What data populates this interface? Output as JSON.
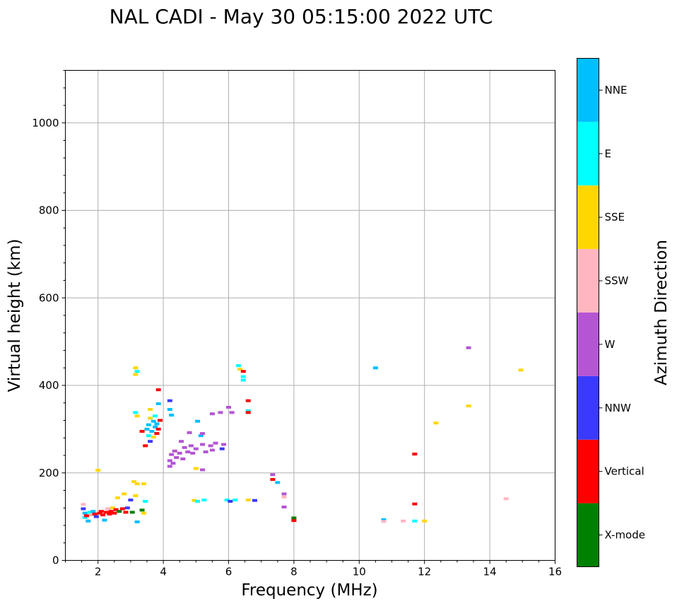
{
  "chart_data": {
    "type": "scatter",
    "title": "NAL CADI - May 30 05:15:00 2022 UTC",
    "xlabel": "Frequency (MHz)",
    "ylabel": "Virtual height (km)",
    "xlim": [
      1,
      16
    ],
    "ylim": [
      0,
      1120
    ],
    "xticks": [
      2,
      4,
      6,
      8,
      10,
      12,
      14,
      16
    ],
    "xtick_labels": [
      "2",
      "4",
      "6",
      "8",
      "10",
      "12",
      "14",
      "16"
    ],
    "yticks": [
      0,
      200,
      400,
      600,
      800,
      1000
    ],
    "ytick_labels": [
      "0",
      "200",
      "400",
      "600",
      "800",
      "1000"
    ],
    "grid": true,
    "colorbar": {
      "label": "Azimuth Direction",
      "categories": [
        {
          "name": "X-mode",
          "color": "#008000"
        },
        {
          "name": "Vertical",
          "color": "#ff0000"
        },
        {
          "name": "NNW",
          "color": "#3a3aff"
        },
        {
          "name": "W",
          "color": "#b455d4"
        },
        {
          "name": "SSW",
          "color": "#ffb6c1"
        },
        {
          "name": "SSE",
          "color": "#ffd700"
        },
        {
          "name": "E",
          "color": "#00ffff"
        },
        {
          "name": "NNE",
          "color": "#00bfff"
        }
      ]
    },
    "points": [
      {
        "f": 1.55,
        "h": 128,
        "dir": "SSW"
      },
      {
        "f": 1.55,
        "h": 118,
        "dir": "NNW"
      },
      {
        "f": 1.6,
        "h": 108,
        "dir": "NNE"
      },
      {
        "f": 1.6,
        "h": 98,
        "dir": "E"
      },
      {
        "f": 1.65,
        "h": 102,
        "dir": "Vertical"
      },
      {
        "f": 1.7,
        "h": 90,
        "dir": "NNE"
      },
      {
        "f": 1.75,
        "h": 110,
        "dir": "E"
      },
      {
        "f": 1.8,
        "h": 104,
        "dir": "SSW"
      },
      {
        "f": 1.85,
        "h": 112,
        "dir": "NNE"
      },
      {
        "f": 1.9,
        "h": 106,
        "dir": "Vertical"
      },
      {
        "f": 1.95,
        "h": 100,
        "dir": "NNW"
      },
      {
        "f": 2.0,
        "h": 206,
        "dir": "SSE"
      },
      {
        "f": 2.05,
        "h": 108,
        "dir": "Vertical"
      },
      {
        "f": 2.1,
        "h": 112,
        "dir": "Vertical"
      },
      {
        "f": 2.15,
        "h": 104,
        "dir": "Vertical"
      },
      {
        "f": 2.2,
        "h": 92,
        "dir": "NNE"
      },
      {
        "f": 2.25,
        "h": 110,
        "dir": "Vertical"
      },
      {
        "f": 2.3,
        "h": 118,
        "dir": "SSW"
      },
      {
        "f": 2.35,
        "h": 106,
        "dir": "Vertical"
      },
      {
        "f": 2.4,
        "h": 112,
        "dir": "Vertical"
      },
      {
        "f": 2.45,
        "h": 120,
        "dir": "SSE"
      },
      {
        "f": 2.5,
        "h": 108,
        "dir": "Vertical"
      },
      {
        "f": 2.55,
        "h": 116,
        "dir": "Vertical"
      },
      {
        "f": 2.6,
        "h": 143,
        "dir": "SSE"
      },
      {
        "f": 2.65,
        "h": 112,
        "dir": "X-mode"
      },
      {
        "f": 2.75,
        "h": 118,
        "dir": "Vertical"
      },
      {
        "f": 2.8,
        "h": 152,
        "dir": "SSE"
      },
      {
        "f": 2.85,
        "h": 110,
        "dir": "Vertical"
      },
      {
        "f": 2.9,
        "h": 120,
        "dir": "NNW"
      },
      {
        "f": 3.0,
        "h": 138,
        "dir": "NNW"
      },
      {
        "f": 3.05,
        "h": 110,
        "dir": "X-mode"
      },
      {
        "f": 3.1,
        "h": 180,
        "dir": "SSE"
      },
      {
        "f": 3.15,
        "h": 148,
        "dir": "SSE"
      },
      {
        "f": 3.2,
        "h": 88,
        "dir": "NNE"
      },
      {
        "f": 3.2,
        "h": 175,
        "dir": "SSE"
      },
      {
        "f": 3.15,
        "h": 425,
        "dir": "SSE"
      },
      {
        "f": 3.15,
        "h": 440,
        "dir": "SSE"
      },
      {
        "f": 3.2,
        "h": 432,
        "dir": "E"
      },
      {
        "f": 3.15,
        "h": 338,
        "dir": "E"
      },
      {
        "f": 3.2,
        "h": 330,
        "dir": "SSE"
      },
      {
        "f": 3.35,
        "h": 115,
        "dir": "X-mode"
      },
      {
        "f": 3.4,
        "h": 108,
        "dir": "SSE"
      },
      {
        "f": 3.45,
        "h": 135,
        "dir": "E"
      },
      {
        "f": 3.4,
        "h": 175,
        "dir": "SSE"
      },
      {
        "f": 3.35,
        "h": 295,
        "dir": "Vertical"
      },
      {
        "f": 3.45,
        "h": 262,
        "dir": "Vertical"
      },
      {
        "f": 3.5,
        "h": 300,
        "dir": "NNE"
      },
      {
        "f": 3.55,
        "h": 285,
        "dir": "E"
      },
      {
        "f": 3.55,
        "h": 310,
        "dir": "NNE"
      },
      {
        "f": 3.6,
        "h": 325,
        "dir": "SSE"
      },
      {
        "f": 3.6,
        "h": 345,
        "dir": "SSE"
      },
      {
        "f": 3.6,
        "h": 272,
        "dir": "NNW"
      },
      {
        "f": 3.65,
        "h": 295,
        "dir": "NNE"
      },
      {
        "f": 3.7,
        "h": 318,
        "dir": "NNE"
      },
      {
        "f": 3.7,
        "h": 282,
        "dir": "SSE"
      },
      {
        "f": 3.75,
        "h": 305,
        "dir": "NNE"
      },
      {
        "f": 3.75,
        "h": 330,
        "dir": "E"
      },
      {
        "f": 3.8,
        "h": 290,
        "dir": "Vertical"
      },
      {
        "f": 3.8,
        "h": 312,
        "dir": "NNE"
      },
      {
        "f": 3.85,
        "h": 300,
        "dir": "Vertical"
      },
      {
        "f": 3.85,
        "h": 358,
        "dir": "NNE"
      },
      {
        "f": 3.85,
        "h": 390,
        "dir": "Vertical"
      },
      {
        "f": 3.9,
        "h": 320,
        "dir": "Vertical"
      },
      {
        "f": 4.2,
        "h": 365,
        "dir": "NNW"
      },
      {
        "f": 4.2,
        "h": 345,
        "dir": "NNE"
      },
      {
        "f": 4.25,
        "h": 332,
        "dir": "NNE"
      },
      {
        "f": 4.2,
        "h": 215,
        "dir": "W"
      },
      {
        "f": 4.2,
        "h": 228,
        "dir": "W"
      },
      {
        "f": 4.25,
        "h": 242,
        "dir": "W"
      },
      {
        "f": 4.3,
        "h": 222,
        "dir": "W"
      },
      {
        "f": 4.35,
        "h": 250,
        "dir": "W"
      },
      {
        "f": 4.4,
        "h": 235,
        "dir": "W"
      },
      {
        "f": 4.5,
        "h": 245,
        "dir": "W"
      },
      {
        "f": 4.55,
        "h": 272,
        "dir": "W"
      },
      {
        "f": 4.6,
        "h": 232,
        "dir": "W"
      },
      {
        "f": 4.65,
        "h": 258,
        "dir": "W"
      },
      {
        "f": 4.75,
        "h": 248,
        "dir": "W"
      },
      {
        "f": 4.8,
        "h": 292,
        "dir": "W"
      },
      {
        "f": 4.85,
        "h": 262,
        "dir": "W"
      },
      {
        "f": 4.9,
        "h": 245,
        "dir": "W"
      },
      {
        "f": 5.0,
        "h": 255,
        "dir": "W"
      },
      {
        "f": 5.05,
        "h": 318,
        "dir": "NNE"
      },
      {
        "f": 5.0,
        "h": 210,
        "dir": "SSE"
      },
      {
        "f": 4.95,
        "h": 137,
        "dir": "SSE"
      },
      {
        "f": 5.05,
        "h": 135,
        "dir": "E"
      },
      {
        "f": 5.15,
        "h": 285,
        "dir": "NNE"
      },
      {
        "f": 5.2,
        "h": 290,
        "dir": "W"
      },
      {
        "f": 5.2,
        "h": 265,
        "dir": "W"
      },
      {
        "f": 5.2,
        "h": 207,
        "dir": "W"
      },
      {
        "f": 5.25,
        "h": 138,
        "dir": "E"
      },
      {
        "f": 5.3,
        "h": 248,
        "dir": "W"
      },
      {
        "f": 5.45,
        "h": 262,
        "dir": "W"
      },
      {
        "f": 5.5,
        "h": 252,
        "dir": "W"
      },
      {
        "f": 5.6,
        "h": 268,
        "dir": "W"
      },
      {
        "f": 5.5,
        "h": 335,
        "dir": "W"
      },
      {
        "f": 5.75,
        "h": 338,
        "dir": "W"
      },
      {
        "f": 5.8,
        "h": 255,
        "dir": "NNW"
      },
      {
        "f": 5.85,
        "h": 265,
        "dir": "W"
      },
      {
        "f": 5.95,
        "h": 138,
        "dir": "E"
      },
      {
        "f": 6.0,
        "h": 350,
        "dir": "W"
      },
      {
        "f": 6.05,
        "h": 135,
        "dir": "NNW"
      },
      {
        "f": 6.1,
        "h": 338,
        "dir": "W"
      },
      {
        "f": 6.2,
        "h": 138,
        "dir": "E"
      },
      {
        "f": 6.3,
        "h": 445,
        "dir": "E"
      },
      {
        "f": 6.35,
        "h": 437,
        "dir": "SSE"
      },
      {
        "f": 6.45,
        "h": 432,
        "dir": "Vertical"
      },
      {
        "f": 6.45,
        "h": 420,
        "dir": "E"
      },
      {
        "f": 6.45,
        "h": 412,
        "dir": "E"
      },
      {
        "f": 6.6,
        "h": 365,
        "dir": "Vertical"
      },
      {
        "f": 6.6,
        "h": 342,
        "dir": "E"
      },
      {
        "f": 6.6,
        "h": 338,
        "dir": "Vertical"
      },
      {
        "f": 6.6,
        "h": 138,
        "dir": "SSE"
      },
      {
        "f": 6.8,
        "h": 137,
        "dir": "NNW"
      },
      {
        "f": 7.35,
        "h": 196,
        "dir": "W"
      },
      {
        "f": 7.35,
        "h": 185,
        "dir": "Vertical"
      },
      {
        "f": 7.5,
        "h": 178,
        "dir": "NNE"
      },
      {
        "f": 7.7,
        "h": 152,
        "dir": "W"
      },
      {
        "f": 7.7,
        "h": 145,
        "dir": "SSW"
      },
      {
        "f": 7.7,
        "h": 122,
        "dir": "W"
      },
      {
        "f": 8.0,
        "h": 97,
        "dir": "X-mode"
      },
      {
        "f": 8.0,
        "h": 91,
        "dir": "Vertical"
      },
      {
        "f": 10.5,
        "h": 440,
        "dir": "NNE"
      },
      {
        "f": 10.75,
        "h": 93,
        "dir": "NNE"
      },
      {
        "f": 10.75,
        "h": 89,
        "dir": "SSW"
      },
      {
        "f": 11.35,
        "h": 90,
        "dir": "SSW"
      },
      {
        "f": 11.7,
        "h": 243,
        "dir": "Vertical"
      },
      {
        "f": 11.7,
        "h": 129,
        "dir": "Vertical"
      },
      {
        "f": 11.7,
        "h": 90,
        "dir": "E"
      },
      {
        "f": 12.0,
        "h": 90,
        "dir": "SSE"
      },
      {
        "f": 12.35,
        "h": 314,
        "dir": "SSE"
      },
      {
        "f": 13.35,
        "h": 486,
        "dir": "W"
      },
      {
        "f": 13.35,
        "h": 353,
        "dir": "SSE"
      },
      {
        "f": 14.5,
        "h": 141,
        "dir": "SSW"
      },
      {
        "f": 14.95,
        "h": 435,
        "dir": "SSE"
      }
    ]
  }
}
